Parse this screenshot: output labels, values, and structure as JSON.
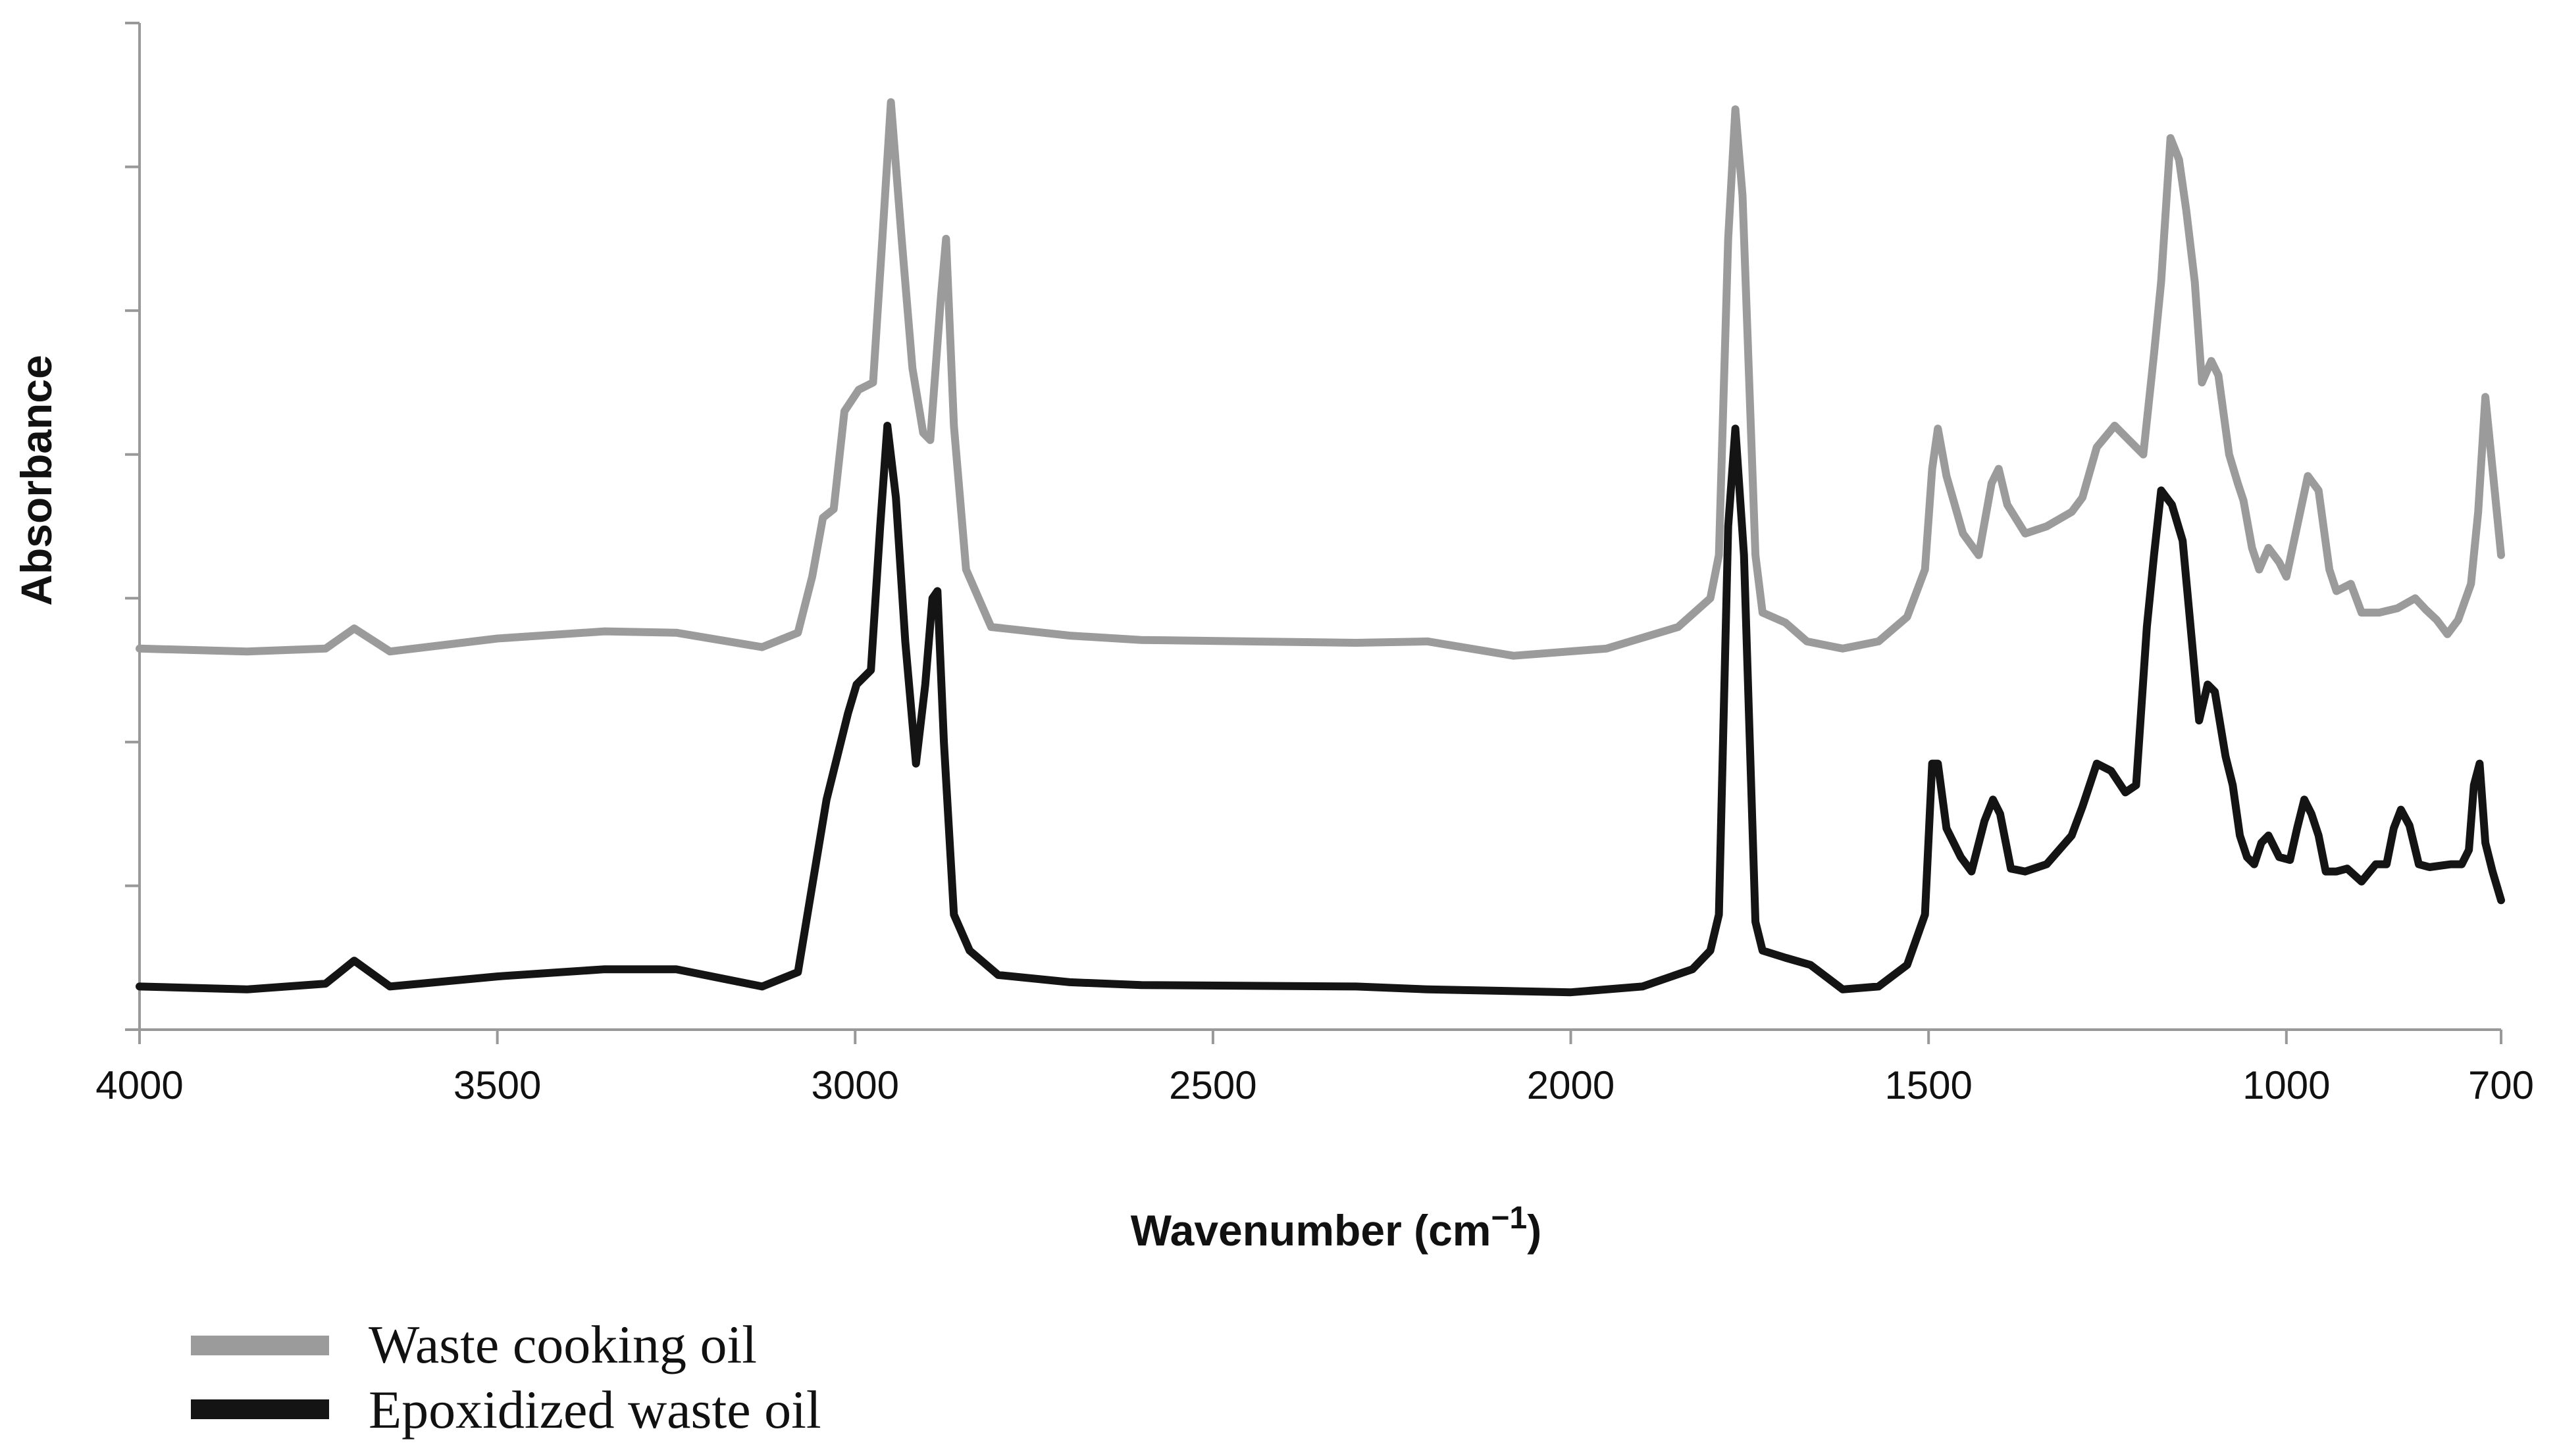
{
  "chart_data": {
    "type": "line",
    "title": "",
    "xlabel": "Wavenumber (cm",
    "xlabel_sup": "−1",
    "xlabel_close": ")",
    "ylabel": "Absorbance",
    "xlim": [
      4000,
      700
    ],
    "ylim": [
      0,
      7
    ],
    "x_reversed": true,
    "grid": false,
    "y_tick_labels_shown": false,
    "x_ticks": [
      {
        "value": 4000,
        "label": "4000"
      },
      {
        "value": 3500,
        "label": "3500"
      },
      {
        "value": 3000,
        "label": "3000"
      },
      {
        "value": 2500,
        "label": "2500"
      },
      {
        "value": 2000,
        "label": "2000"
      },
      {
        "value": 1500,
        "label": "1500"
      },
      {
        "value": 1000,
        "label": "1000"
      },
      {
        "value": 700,
        "label": "700"
      }
    ],
    "y_ticks": [
      0,
      1,
      2,
      3,
      4,
      5,
      6,
      7
    ],
    "legend_position": "bottom-left",
    "series": [
      {
        "name": "Waste cooking oil",
        "color": "#9b9b9b",
        "points": [
          [
            4000,
            2.65
          ],
          [
            3850,
            2.63
          ],
          [
            3740,
            2.65
          ],
          [
            3700,
            2.79
          ],
          [
            3650,
            2.63
          ],
          [
            3500,
            2.72
          ],
          [
            3350,
            2.77
          ],
          [
            3250,
            2.76
          ],
          [
            3130,
            2.66
          ],
          [
            3080,
            2.76
          ],
          [
            3060,
            3.15
          ],
          [
            3045,
            3.56
          ],
          [
            3030,
            3.62
          ],
          [
            3015,
            4.3
          ],
          [
            2995,
            4.45
          ],
          [
            2975,
            4.5
          ],
          [
            2962,
            5.5
          ],
          [
            2950,
            6.45
          ],
          [
            2935,
            5.5
          ],
          [
            2920,
            4.6
          ],
          [
            2905,
            4.15
          ],
          [
            2895,
            4.1
          ],
          [
            2880,
            5.1
          ],
          [
            2873,
            5.5
          ],
          [
            2862,
            4.2
          ],
          [
            2845,
            3.2
          ],
          [
            2810,
            2.8
          ],
          [
            2700,
            2.74
          ],
          [
            2600,
            2.71
          ],
          [
            2300,
            2.69
          ],
          [
            2200,
            2.7
          ],
          [
            2080,
            2.6
          ],
          [
            1950,
            2.65
          ],
          [
            1850,
            2.8
          ],
          [
            1805,
            3.0
          ],
          [
            1793,
            3.3
          ],
          [
            1780,
            5.5
          ],
          [
            1770,
            6.4
          ],
          [
            1760,
            5.8
          ],
          [
            1742,
            3.3
          ],
          [
            1732,
            2.9
          ],
          [
            1700,
            2.83
          ],
          [
            1670,
            2.7
          ],
          [
            1620,
            2.65
          ],
          [
            1570,
            2.7
          ],
          [
            1530,
            2.87
          ],
          [
            1505,
            3.2
          ],
          [
            1495,
            3.9
          ],
          [
            1487,
            4.18
          ],
          [
            1475,
            3.85
          ],
          [
            1452,
            3.45
          ],
          [
            1430,
            3.3
          ],
          [
            1412,
            3.8
          ],
          [
            1402,
            3.9
          ],
          [
            1390,
            3.65
          ],
          [
            1365,
            3.45
          ],
          [
            1335,
            3.5
          ],
          [
            1300,
            3.6
          ],
          [
            1285,
            3.7
          ],
          [
            1265,
            4.05
          ],
          [
            1240,
            4.2
          ],
          [
            1220,
            4.1
          ],
          [
            1200,
            4.0
          ],
          [
            1185,
            4.7
          ],
          [
            1175,
            5.2
          ],
          [
            1162,
            6.2
          ],
          [
            1150,
            6.05
          ],
          [
            1140,
            5.7
          ],
          [
            1128,
            5.2
          ],
          [
            1118,
            4.5
          ],
          [
            1105,
            4.65
          ],
          [
            1095,
            4.55
          ],
          [
            1080,
            4.0
          ],
          [
            1068,
            3.8
          ],
          [
            1060,
            3.68
          ],
          [
            1048,
            3.35
          ],
          [
            1038,
            3.2
          ],
          [
            1025,
            3.35
          ],
          [
            1010,
            3.25
          ],
          [
            1000,
            3.15
          ],
          [
            985,
            3.5
          ],
          [
            970,
            3.85
          ],
          [
            955,
            3.75
          ],
          [
            940,
            3.2
          ],
          [
            930,
            3.05
          ],
          [
            910,
            3.1
          ],
          [
            895,
            2.9
          ],
          [
            870,
            2.9
          ],
          [
            845,
            2.93
          ],
          [
            820,
            3.0
          ],
          [
            805,
            2.92
          ],
          [
            790,
            2.85
          ],
          [
            775,
            2.75
          ],
          [
            760,
            2.85
          ],
          [
            742,
            3.1
          ],
          [
            732,
            3.6
          ],
          [
            722,
            4.4
          ],
          [
            712,
            3.9
          ],
          [
            700,
            3.3
          ]
        ]
      },
      {
        "name": "Epoxidized waste oil",
        "color": "#141414",
        "points": [
          [
            4000,
            0.3
          ],
          [
            3850,
            0.28
          ],
          [
            3740,
            0.32
          ],
          [
            3700,
            0.48
          ],
          [
            3650,
            0.3
          ],
          [
            3500,
            0.37
          ],
          [
            3350,
            0.42
          ],
          [
            3250,
            0.42
          ],
          [
            3130,
            0.3
          ],
          [
            3080,
            0.4
          ],
          [
            3060,
            1.0
          ],
          [
            3040,
            1.6
          ],
          [
            3010,
            2.2
          ],
          [
            2998,
            2.4
          ],
          [
            2978,
            2.5
          ],
          [
            2965,
            3.5
          ],
          [
            2955,
            4.2
          ],
          [
            2943,
            3.7
          ],
          [
            2930,
            2.7
          ],
          [
            2915,
            1.85
          ],
          [
            2902,
            2.4
          ],
          [
            2892,
            3.0
          ],
          [
            2885,
            3.05
          ],
          [
            2876,
            2.0
          ],
          [
            2862,
            0.8
          ],
          [
            2840,
            0.55
          ],
          [
            2800,
            0.38
          ],
          [
            2700,
            0.33
          ],
          [
            2600,
            0.31
          ],
          [
            2300,
            0.3
          ],
          [
            2200,
            0.28
          ],
          [
            2000,
            0.26
          ],
          [
            1900,
            0.3
          ],
          [
            1830,
            0.42
          ],
          [
            1805,
            0.55
          ],
          [
            1793,
            0.8
          ],
          [
            1780,
            3.5
          ],
          [
            1770,
            4.18
          ],
          [
            1758,
            3.3
          ],
          [
            1742,
            0.75
          ],
          [
            1732,
            0.55
          ],
          [
            1700,
            0.5
          ],
          [
            1665,
            0.45
          ],
          [
            1620,
            0.28
          ],
          [
            1570,
            0.3
          ],
          [
            1530,
            0.45
          ],
          [
            1505,
            0.8
          ],
          [
            1495,
            1.85
          ],
          [
            1487,
            1.85
          ],
          [
            1475,
            1.4
          ],
          [
            1455,
            1.2
          ],
          [
            1440,
            1.1
          ],
          [
            1422,
            1.45
          ],
          [
            1410,
            1.6
          ],
          [
            1400,
            1.5
          ],
          [
            1385,
            1.12
          ],
          [
            1365,
            1.1
          ],
          [
            1335,
            1.15
          ],
          [
            1300,
            1.35
          ],
          [
            1285,
            1.55
          ],
          [
            1265,
            1.85
          ],
          [
            1245,
            1.8
          ],
          [
            1225,
            1.65
          ],
          [
            1210,
            1.7
          ],
          [
            1195,
            2.8
          ],
          [
            1185,
            3.3
          ],
          [
            1175,
            3.75
          ],
          [
            1160,
            3.65
          ],
          [
            1145,
            3.4
          ],
          [
            1132,
            2.7
          ],
          [
            1122,
            2.15
          ],
          [
            1110,
            2.4
          ],
          [
            1100,
            2.35
          ],
          [
            1085,
            1.9
          ],
          [
            1075,
            1.7
          ],
          [
            1065,
            1.35
          ],
          [
            1055,
            1.2
          ],
          [
            1045,
            1.15
          ],
          [
            1035,
            1.3
          ],
          [
            1025,
            1.35
          ],
          [
            1010,
            1.2
          ],
          [
            995,
            1.18
          ],
          [
            985,
            1.4
          ],
          [
            975,
            1.6
          ],
          [
            965,
            1.5
          ],
          [
            955,
            1.35
          ],
          [
            945,
            1.1
          ],
          [
            930,
            1.1
          ],
          [
            915,
            1.12
          ],
          [
            895,
            1.03
          ],
          [
            875,
            1.15
          ],
          [
            860,
            1.15
          ],
          [
            850,
            1.4
          ],
          [
            840,
            1.53
          ],
          [
            828,
            1.42
          ],
          [
            815,
            1.15
          ],
          [
            800,
            1.13
          ],
          [
            770,
            1.15
          ],
          [
            755,
            1.15
          ],
          [
            745,
            1.25
          ],
          [
            738,
            1.7
          ],
          [
            730,
            1.85
          ],
          [
            722,
            1.3
          ],
          [
            712,
            1.1
          ],
          [
            700,
            0.9
          ]
        ]
      }
    ]
  }
}
